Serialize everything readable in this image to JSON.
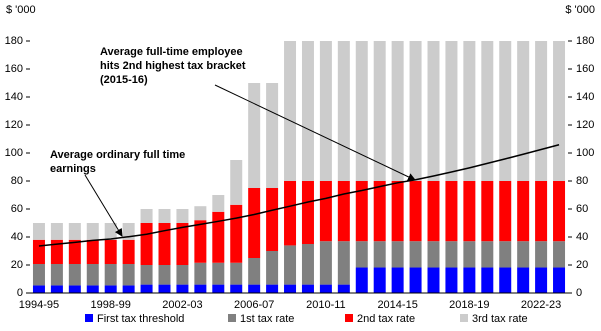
{
  "chart_data": {
    "type": "bar",
    "y_unit_label_left": "$ '000",
    "y_unit_label_right": "$ '000",
    "categories": [
      "1994-95",
      null,
      null,
      null,
      "1998-99",
      null,
      null,
      null,
      "2002-03",
      null,
      null,
      null,
      "2006-07",
      null,
      null,
      null,
      "2010-11",
      null,
      null,
      null,
      "2014-15",
      null,
      null,
      null,
      "2018-19",
      null,
      null,
      null,
      "2022-23",
      null
    ],
    "series": [
      {
        "name": "First tax threshold",
        "color": "#0000ff",
        "values": [
          5.4,
          5.4,
          5.4,
          5.4,
          5.4,
          5.4,
          6,
          6,
          6,
          6,
          6,
          6,
          6,
          6,
          6,
          6,
          6,
          6,
          18.2,
          18.2,
          18.2,
          18.2,
          18.2,
          18.2,
          18.2,
          18.2,
          18.2,
          18.2,
          18.2,
          18.2
        ]
      },
      {
        "name": "1st tax rate",
        "color": "#808080",
        "values": [
          15.3,
          15.3,
          15.3,
          15.3,
          15.3,
          15.3,
          14,
          14,
          14,
          15.6,
          15.6,
          15.6,
          19,
          24,
          28,
          29,
          31,
          31,
          18.8,
          18.8,
          18.8,
          18.8,
          18.8,
          18.8,
          18.8,
          18.8,
          18.8,
          18.8,
          18.8,
          18.8
        ]
      },
      {
        "name": "2nd tax rate",
        "color": "#ff0000",
        "values": [
          17.3,
          17.3,
          17.3,
          17.3,
          17.3,
          17.3,
          30,
          30,
          30,
          30.4,
          36.4,
          41.4,
          50,
          45,
          46,
          45,
          43,
          43,
          43,
          43,
          43,
          43,
          43,
          43,
          43,
          43,
          43,
          43,
          43,
          43
        ]
      },
      {
        "name": "3rd tax rate",
        "color": "#cccccc",
        "values": [
          12,
          12,
          12,
          12,
          12,
          12,
          10,
          10,
          10,
          10,
          12,
          32,
          75,
          75,
          100,
          100,
          100,
          100,
          100,
          100,
          100,
          100,
          100,
          100,
          100,
          100,
          100,
          100,
          100,
          100
        ]
      }
    ],
    "line": {
      "color": "#000000",
      "values": [
        33.6,
        34.9,
        36.2,
        37.6,
        38.6,
        40.2,
        42.0,
        44.5,
        46.9,
        49.0,
        51.2,
        53.5,
        56.1,
        59.1,
        62.0,
        65.0,
        67.6,
        70.7,
        73.2,
        76.0,
        78.7,
        80.9,
        83.6,
        86.4,
        89.4,
        92.6,
        95.8,
        99.1,
        102.5,
        105.9
      ]
    },
    "annotations": [
      {
        "lines": [
          "Average full-time employee",
          "hits 2nd highest tax bracket",
          "(2015-16)"
        ]
      },
      {
        "lines": [
          "Average ordinary full time",
          "earnings"
        ]
      }
    ],
    "ylim": [
      0,
      180
    ],
    "yticks": [
      0,
      20,
      40,
      60,
      80,
      100,
      120,
      140,
      160,
      180
    ],
    "y2lim": [
      0,
      180
    ],
    "y2ticks": [
      0,
      20,
      40,
      60,
      80,
      100,
      120,
      140,
      160,
      180
    ],
    "legend": "bottom"
  }
}
